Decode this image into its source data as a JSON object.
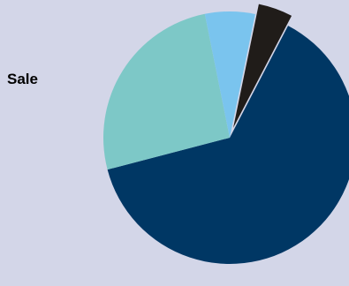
{
  "chart_data": {
    "type": "pie",
    "title": "Sale",
    "slices": [
      {
        "value": 63.3,
        "color": "#003764"
      },
      {
        "value": 25.9,
        "color": "#7dc8c7"
      },
      {
        "value": 6.4,
        "color": "#7ac4ee"
      },
      {
        "value": 4.4,
        "color": "#201c19",
        "exploded": true
      }
    ]
  }
}
